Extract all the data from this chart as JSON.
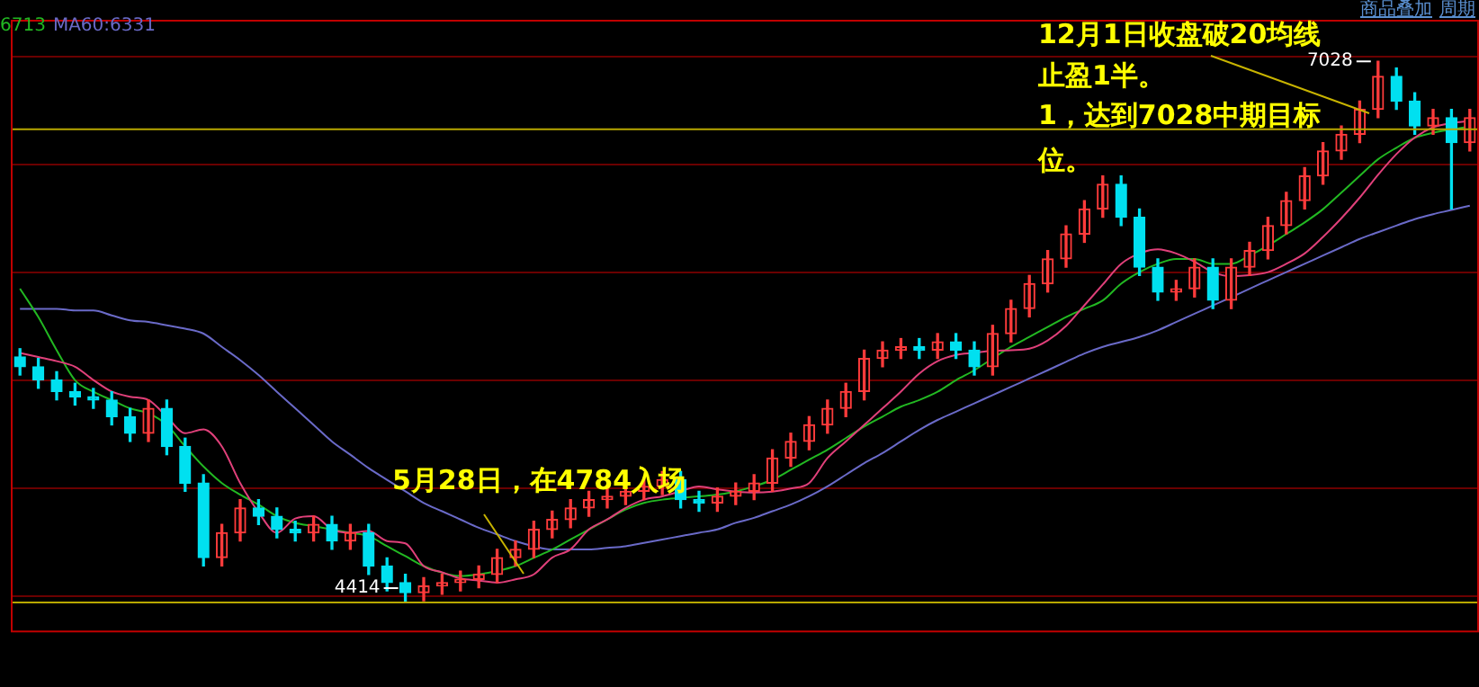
{
  "chart_data": {
    "type": "candlestick",
    "categories": [
      null,
      null,
      null,
      null,
      null,
      null,
      null,
      null,
      null,
      null,
      null,
      null,
      null,
      null,
      null,
      null,
      null,
      null,
      null,
      null,
      null,
      null,
      null,
      null,
      null,
      null,
      null,
      null,
      null,
      null,
      null,
      null,
      null,
      null,
      null,
      null,
      null,
      null,
      null,
      null,
      null,
      null,
      null,
      null,
      null,
      null,
      null,
      null,
      null,
      null,
      null,
      null,
      null,
      null,
      null,
      null,
      null,
      null,
      null,
      null,
      null,
      null,
      null,
      null,
      null,
      null,
      null,
      null,
      null,
      null,
      null,
      null,
      null,
      null,
      null,
      null,
      null,
      null,
      null,
      null
    ],
    "ohlc": [
      [
        5600,
        5640,
        5513,
        5553
      ],
      [
        5553,
        5593,
        5449,
        5489
      ],
      [
        5489,
        5529,
        5393,
        5433
      ],
      [
        5433,
        5473,
        5368,
        5408
      ],
      [
        5408,
        5448,
        5352,
        5392
      ],
      [
        5392,
        5432,
        5272,
        5312
      ],
      [
        5312,
        5352,
        5192,
        5232
      ],
      [
        5232,
        5392,
        5192,
        5352
      ],
      [
        5352,
        5392,
        5128,
        5168
      ],
      [
        5168,
        5208,
        4951,
        4991
      ],
      [
        4991,
        5031,
        4591,
        4631
      ],
      [
        4631,
        4791,
        4591,
        4751
      ],
      [
        4751,
        4911,
        4711,
        4871
      ],
      [
        4871,
        4911,
        4791,
        4831
      ],
      [
        4831,
        4871,
        4727,
        4767
      ],
      [
        4767,
        4807,
        4711,
        4751
      ],
      [
        4751,
        4831,
        4711,
        4791
      ],
      [
        4791,
        4831,
        4671,
        4711
      ],
      [
        4711,
        4791,
        4671,
        4751
      ],
      [
        4751,
        4791,
        4550,
        4590
      ],
      [
        4590,
        4630,
        4470,
        4510
      ],
      [
        4510,
        4550,
        4414,
        4462
      ],
      [
        4462,
        4534,
        4422,
        4494
      ],
      [
        4494,
        4550,
        4454,
        4510
      ],
      [
        4510,
        4566,
        4470,
        4526
      ],
      [
        4526,
        4590,
        4486,
        4550
      ],
      [
        4550,
        4671,
        4510,
        4631
      ],
      [
        4631,
        4711,
        4591,
        4671
      ],
      [
        4671,
        4807,
        4631,
        4767
      ],
      [
        4767,
        4855,
        4727,
        4815
      ],
      [
        4815,
        4911,
        4775,
        4871
      ],
      [
        4871,
        4951,
        4831,
        4911
      ],
      [
        4911,
        4967,
        4871,
        4927
      ],
      [
        4927,
        4991,
        4887,
        4951
      ],
      [
        4951,
        5015,
        4911,
        4975
      ],
      [
        4975,
        5047,
        4935,
        5007
      ],
      [
        5007,
        5047,
        4871,
        4911
      ],
      [
        4911,
        4951,
        4855,
        4895
      ],
      [
        4895,
        4967,
        4855,
        4927
      ],
      [
        4927,
        4991,
        4887,
        4951
      ],
      [
        4951,
        5031,
        4911,
        4991
      ],
      [
        4991,
        5152,
        4951,
        5112
      ],
      [
        5112,
        5232,
        5072,
        5192
      ],
      [
        5192,
        5312,
        5152,
        5272
      ],
      [
        5272,
        5392,
        5232,
        5352
      ],
      [
        5352,
        5473,
        5312,
        5433
      ],
      [
        5433,
        5633,
        5393,
        5593
      ],
      [
        5593,
        5673,
        5553,
        5633
      ],
      [
        5633,
        5689,
        5593,
        5649
      ],
      [
        5649,
        5689,
        5593,
        5633
      ],
      [
        5633,
        5713,
        5593,
        5673
      ],
      [
        5673,
        5713,
        5593,
        5633
      ],
      [
        5633,
        5673,
        5513,
        5553
      ],
      [
        5553,
        5753,
        5513,
        5713
      ],
      [
        5713,
        5874,
        5673,
        5834
      ],
      [
        5834,
        5994,
        5794,
        5954
      ],
      [
        5954,
        6114,
        5914,
        6074
      ],
      [
        6074,
        6234,
        6034,
        6194
      ],
      [
        6194,
        6355,
        6154,
        6315
      ],
      [
        6315,
        6475,
        6275,
        6435
      ],
      [
        6435,
        6475,
        6235,
        6275
      ],
      [
        6275,
        6315,
        5994,
        6034
      ],
      [
        6034,
        6074,
        5874,
        5914
      ],
      [
        5914,
        5970,
        5874,
        5930
      ],
      [
        5930,
        6074,
        5890,
        6034
      ],
      [
        6034,
        6074,
        5834,
        5874
      ],
      [
        5874,
        6074,
        5834,
        6034
      ],
      [
        6034,
        6154,
        5994,
        6114
      ],
      [
        6114,
        6275,
        6074,
        6235
      ],
      [
        6235,
        6395,
        6195,
        6355
      ],
      [
        6355,
        6515,
        6315,
        6475
      ],
      [
        6475,
        6635,
        6435,
        6595
      ],
      [
        6595,
        6716,
        6555,
        6676
      ],
      [
        6676,
        6836,
        6636,
        6796
      ],
      [
        6796,
        7028,
        6756,
        6956
      ],
      [
        6956,
        6996,
        6796,
        6836
      ],
      [
        6836,
        6876,
        6676,
        6716
      ],
      [
        6716,
        6796,
        6676,
        6756
      ],
      [
        6756,
        6796,
        6315,
        6636
      ],
      [
        6636,
        6796,
        6596,
        6756
      ]
    ],
    "colors": [
      "#00e0f0",
      "#00e0f0",
      "#00e0f0",
      "#00e0f0",
      "#00e0f0",
      "#00e0f0",
      "#00e0f0",
      "#ff3b3b",
      "#00e0f0",
      "#00e0f0",
      "#00e0f0",
      "#ff3b3b",
      "#ff3b3b",
      "#00e0f0",
      "#00e0f0",
      "#00e0f0",
      "#ff3b3b",
      "#00e0f0",
      "#ff3b3b",
      "#00e0f0",
      "#00e0f0",
      "#00e0f0",
      "#ff3b3b",
      "#ff3b3b",
      "#ff3b3b",
      "#ff3b3b",
      "#ff3b3b",
      "#ff3b3b",
      "#ff3b3b",
      "#ff3b3b",
      "#ff3b3b",
      "#ff3b3b",
      "#ff3b3b",
      "#ff3b3b",
      "#ff3b3b",
      "#ff3b3b",
      "#00e0f0",
      "#00e0f0",
      "#ff3b3b",
      "#ff3b3b",
      "#ff3b3b",
      "#ff3b3b",
      "#ff3b3b",
      "#ff3b3b",
      "#ff3b3b",
      "#ff3b3b",
      "#ff3b3b",
      "#ff3b3b",
      "#ff3b3b",
      "#00e0f0",
      "#ff3b3b",
      "#00e0f0",
      "#00e0f0",
      "#ff3b3b",
      "#ff3b3b",
      "#ff3b3b",
      "#ff3b3b",
      "#ff3b3b",
      "#ff3b3b",
      "#ff3b3b",
      "#00e0f0",
      "#00e0f0",
      "#00e0f0",
      "#ff3b3b",
      "#ff3b3b",
      "#00e0f0",
      "#ff3b3b",
      "#ff3b3b",
      "#ff3b3b",
      "#ff3b3b",
      "#ff3b3b",
      "#ff3b3b",
      "#ff3b3b",
      "#ff3b3b",
      "#ff3b3b",
      "#00e0f0",
      "#00e0f0",
      "#ff3b3b",
      "#00e0f0",
      "#ff3b3b"
    ],
    "series": [
      {
        "type": "line",
        "color": "#e0407a",
        "values": [
          5620,
          5600,
          5580,
          5553,
          5489,
          5433,
          5408,
          5392,
          5312,
          5232,
          5250,
          5168,
          4991,
          4850,
          4751,
          4820,
          4831,
          4767,
          4751,
          4760,
          4711,
          4700,
          4590,
          4560,
          4530,
          4520,
          4510,
          4526,
          4550,
          4631,
          4671,
          4767,
          4815,
          4871,
          4911,
          4927,
          4951,
          4975,
          4960,
          4950,
          4945,
          4950,
          4965,
          4991,
          5112,
          5192,
          5272,
          5352,
          5433,
          5520,
          5580,
          5610,
          5620,
          5630,
          5633,
          5640,
          5680,
          5750,
          5850,
          5950,
          6050,
          6100,
          6120,
          6100,
          6060,
          6010,
          5990,
          5995,
          6010,
          6050,
          6100,
          6180,
          6270,
          6370,
          6480,
          6580,
          6660,
          6710,
          6730,
          6740
        ]
      },
      {
        "type": "line",
        "name": "6713",
        "color": "#22b822",
        "values": [
          5930,
          5793,
          5633,
          5488,
          5432,
          5392,
          5352,
          5328,
          5272,
          5168,
          5071,
          4991,
          4935,
          4887,
          4831,
          4799,
          4783,
          4767,
          4751,
          4735,
          4686,
          4638,
          4590,
          4558,
          4542,
          4550,
          4566,
          4590,
          4630,
          4670,
          4719,
          4767,
          4815,
          4863,
          4895,
          4911,
          4919,
          4927,
          4935,
          4951,
          4975,
          5007,
          5055,
          5104,
          5152,
          5208,
          5264,
          5312,
          5360,
          5392,
          5432,
          5488,
          5536,
          5593,
          5649,
          5697,
          5745,
          5793,
          5833,
          5873,
          5954,
          6010,
          6050,
          6074,
          6074,
          6050,
          6050,
          6090,
          6138,
          6194,
          6250,
          6314,
          6394,
          6475,
          6555,
          6611,
          6659,
          6683,
          6699,
          6713
        ]
      },
      {
        "type": "line",
        "name": "MA60:6331",
        "color": "#6a6ac8",
        "values": [
          5833,
          5833,
          5833,
          5825,
          5825,
          5801,
          5777,
          5769,
          5753,
          5737,
          5713,
          5649,
          5585,
          5513,
          5432,
          5352,
          5272,
          5192,
          5128,
          5063,
          5007,
          4951,
          4895,
          4855,
          4815,
          4775,
          4743,
          4711,
          4686,
          4670,
          4670,
          4670,
          4678,
          4686,
          4702,
          4718,
          4735,
          4751,
          4767,
          4799,
          4823,
          4855,
          4887,
          4927,
          4975,
          5031,
          5087,
          5136,
          5192,
          5248,
          5296,
          5336,
          5376,
          5416,
          5456,
          5496,
          5536,
          5577,
          5617,
          5649,
          5673,
          5697,
          5729,
          5769,
          5809,
          5849,
          5889,
          5930,
          5970,
          6010,
          6050,
          6090,
          6130,
          6170,
          6203,
          6235,
          6266,
          6290,
          6310,
          6331
        ]
      }
    ],
    "ylim": [
      4270,
      7229
    ],
    "yticks": [
      {
        "value": 4446,
        "label": null
      },
      {
        "value": 4967,
        "label": null
      },
      {
        "value": 5488,
        "label": null
      },
      {
        "value": 6010,
        "label": null
      },
      {
        "value": 6531,
        "label": null
      },
      {
        "value": 7052,
        "label": null
      }
    ],
    "grid": "y",
    "legend": "top left",
    "ref_lines": [
      {
        "axis": "y",
        "value": 4414,
        "color": "#b8a800"
      },
      {
        "axis": "y",
        "value": 6700,
        "color": "#b8a800"
      }
    ],
    "annotations": [
      "12月1日收盘破20均线",
      "止盈1半。",
      "1，达到7028中期目标",
      "位。",
      "5月28日，在4784入场",
      "商品叠加",
      "周期",
      "7028",
      "4414"
    ]
  }
}
